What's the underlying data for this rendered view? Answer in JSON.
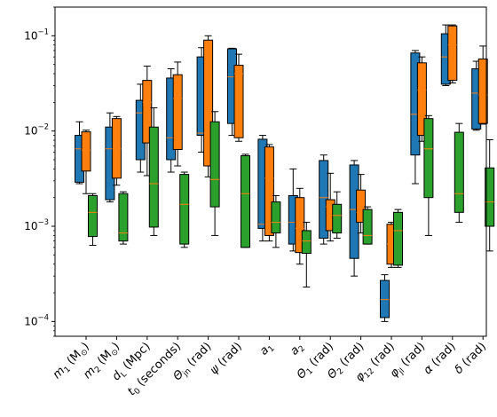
{
  "chart_data": {
    "type": "boxplot",
    "y_scale": "log",
    "ylim": [
      7e-05,
      0.2
    ],
    "y_ticks": [
      {
        "value": 0.1,
        "base": "10",
        "exp": "−1"
      },
      {
        "value": 0.01,
        "base": "10",
        "exp": "−2"
      },
      {
        "value": 0.001,
        "base": "10",
        "exp": "−3"
      },
      {
        "value": 0.0001,
        "base": "10",
        "exp": "−4"
      }
    ],
    "categories": [
      {
        "main": "m",
        "sub": "1",
        "rest": " (M",
        "sub2": "⊙",
        "end": ")"
      },
      {
        "main": "m",
        "sub": "2",
        "rest": " (M",
        "sub2": "⊙",
        "end": ")"
      },
      {
        "main": "d",
        "sub": "L",
        "rest": " (Mpc)",
        "sub2": "",
        "end": ""
      },
      {
        "main": "t",
        "sub": "0",
        "rest": " (seconds)",
        "sub2": "",
        "end": ""
      },
      {
        "main": "Θ",
        "sub": "jn",
        "rest": " (rad)",
        "sub2": "",
        "end": ""
      },
      {
        "main": "ψ",
        "sub": "",
        "rest": " (rad)",
        "sub2": "",
        "end": ""
      },
      {
        "main": "a",
        "sub": "1",
        "rest": "",
        "sub2": "",
        "end": ""
      },
      {
        "main": "a",
        "sub": "2",
        "rest": "",
        "sub2": "",
        "end": ""
      },
      {
        "main": "Θ",
        "sub": "1",
        "rest": " (rad)",
        "sub2": "",
        "end": ""
      },
      {
        "main": "Θ",
        "sub": "2",
        "rest": " (rad)",
        "sub2": "",
        "end": ""
      },
      {
        "main": "φ",
        "sub": "12",
        "rest": " (rad)",
        "sub2": "",
        "end": ""
      },
      {
        "main": "φ",
        "sub": "jl",
        "rest": " (rad)",
        "sub2": "",
        "end": ""
      },
      {
        "main": "α",
        "sub": "",
        "rest": " (rad)",
        "sub2": "",
        "end": ""
      },
      {
        "main": "δ",
        "sub": "",
        "rest": " (rad)",
        "sub2": "",
        "end": ""
      }
    ],
    "series": [
      {
        "color": "#1f77b4",
        "median_color": "#ff7f0e",
        "boxes": [
          {
            "whislo": 0.0028,
            "q1": 0.0029,
            "med": 0.0065,
            "q3": 0.009,
            "whishi": 0.0125
          },
          {
            "whislo": 0.0018,
            "q1": 0.0019,
            "med": 0.0065,
            "q3": 0.011,
            "whishi": 0.0155
          },
          {
            "whislo": 0.0037,
            "q1": 0.005,
            "med": 0.0155,
            "q3": 0.021,
            "whishi": 0.031
          },
          {
            "whislo": 0.0037,
            "q1": 0.005,
            "med": 0.0085,
            "q3": 0.036,
            "whishi": 0.045
          },
          {
            "whislo": 0.006,
            "q1": 0.009,
            "med": 0.0095,
            "q3": 0.06,
            "whishi": 0.075
          },
          {
            "whislo": 0.009,
            "q1": 0.012,
            "med": 0.037,
            "q3": 0.073,
            "whishi": 0.074
          },
          {
            "whislo": 0.0007,
            "q1": 0.00095,
            "med": 0.00105,
            "q3": 0.0082,
            "whishi": 0.009
          },
          {
            "whislo": 0.00055,
            "q1": 0.00065,
            "med": 0.0011,
            "q3": 0.0021,
            "whishi": 0.004
          },
          {
            "whislo": 0.00065,
            "q1": 0.00075,
            "med": 0.002,
            "q3": 0.0049,
            "whishi": 0.0056
          },
          {
            "whislo": 0.0003,
            "q1": 0.00046,
            "med": 0.0015,
            "q3": 0.0044,
            "whishi": 0.0049
          },
          {
            "whislo": 0.0001,
            "q1": 0.00011,
            "med": 0.00017,
            "q3": 0.00027,
            "whishi": 0.00031
          },
          {
            "whislo": 0.0028,
            "q1": 0.0056,
            "med": 0.015,
            "q3": 0.066,
            "whishi": 0.07
          },
          {
            "whislo": 0.03,
            "q1": 0.031,
            "med": 0.06,
            "q3": 0.105,
            "whishi": 0.13
          },
          {
            "whislo": 0.0102,
            "q1": 0.0105,
            "med": 0.025,
            "q3": 0.045,
            "whishi": 0.054
          }
        ]
      },
      {
        "color": "#ff7f0e",
        "median_color": "#ff7f0e",
        "boxes": [
          {
            "whislo": 0.0022,
            "q1": 0.0038,
            "med": 0.0063,
            "q3": 0.0098,
            "whishi": 0.0102
          },
          {
            "whislo": 0.0027,
            "q1": 0.0032,
            "med": 0.0065,
            "q3": 0.0135,
            "whishi": 0.0142
          },
          {
            "whislo": 0.0034,
            "q1": 0.0075,
            "med": 0.02,
            "q3": 0.034,
            "whishi": 0.048
          },
          {
            "whislo": 0.0043,
            "q1": 0.0064,
            "med": 0.022,
            "q3": 0.039,
            "whishi": 0.053
          },
          {
            "whislo": 0.0033,
            "q1": 0.0043,
            "med": 0.0095,
            "q3": 0.09,
            "whishi": 0.1
          },
          {
            "whislo": 0.0078,
            "q1": 0.0085,
            "med": 0.04,
            "q3": 0.049,
            "whishi": 0.064
          },
          {
            "whislo": 0.0007,
            "q1": 0.0008,
            "med": 0.0032,
            "q3": 0.0068,
            "whishi": 0.0072
          },
          {
            "whislo": 0.0004,
            "q1": 0.00053,
            "med": 0.00095,
            "q3": 0.002,
            "whishi": 0.0025
          },
          {
            "whislo": 0.0007,
            "q1": 0.0009,
            "med": 0.0016,
            "q3": 0.0019,
            "whishi": 0.0036
          },
          {
            "whislo": 0.00085,
            "q1": 0.0011,
            "med": 0.0014,
            "q3": 0.0024,
            "whishi": 0.0035
          },
          {
            "whislo": 0.00037,
            "q1": 0.0004,
            "med": 0.00065,
            "q3": 0.00105,
            "whishi": 0.0011
          },
          {
            "whislo": 0.0078,
            "q1": 0.009,
            "med": 0.027,
            "q3": 0.052,
            "whishi": 0.06
          },
          {
            "whislo": 0.032,
            "q1": 0.034,
            "med": 0.08,
            "q3": 0.127,
            "whishi": 0.13
          },
          {
            "whislo": 0.0118,
            "q1": 0.012,
            "med": 0.024,
            "q3": 0.057,
            "whishi": 0.078
          }
        ]
      },
      {
        "color": "#2ca02c",
        "median_color": "#ff7f0e",
        "boxes": [
          {
            "whislo": 0.00063,
            "q1": 0.00078,
            "med": 0.0014,
            "q3": 0.0021,
            "whishi": 0.0022
          },
          {
            "whislo": 0.00065,
            "q1": 0.0007,
            "med": 0.00085,
            "q3": 0.0022,
            "whishi": 0.0023
          },
          {
            "whislo": 0.0008,
            "q1": 0.00098,
            "med": 0.0028,
            "q3": 0.011,
            "whishi": 0.0175
          },
          {
            "whislo": 0.0006,
            "q1": 0.00065,
            "med": 0.0017,
            "q3": 0.0035,
            "whishi": 0.0037
          },
          {
            "whislo": 0.0008,
            "q1": 0.0016,
            "med": 0.0031,
            "q3": 0.0125,
            "whishi": 0.016
          },
          {
            "whislo": 0.0006,
            "q1": 0.0006,
            "med": 0.0022,
            "q3": 0.0055,
            "whishi": 0.0057
          },
          {
            "whislo": 0.0006,
            "q1": 0.00085,
            "med": 0.0011,
            "q3": 0.0018,
            "whishi": 0.0021
          },
          {
            "whislo": 0.00023,
            "q1": 0.00052,
            "med": 0.0007,
            "q3": 0.0009,
            "whishi": 0.0011
          },
          {
            "whislo": 0.00075,
            "q1": 0.00085,
            "med": 0.0013,
            "q3": 0.0017,
            "whishi": 0.0023
          },
          {
            "whislo": 0.00065,
            "q1": 0.00065,
            "med": 0.0008,
            "q3": 0.0015,
            "whishi": 0.0016
          },
          {
            "whislo": 0.00037,
            "q1": 0.00039,
            "med": 0.0009,
            "q3": 0.0014,
            "whishi": 0.0015
          },
          {
            "whislo": 0.0008,
            "q1": 0.002,
            "med": 0.0065,
            "q3": 0.0135,
            "whishi": 0.0145
          },
          {
            "whislo": 0.0011,
            "q1": 0.0014,
            "med": 0.0022,
            "q3": 0.0097,
            "whishi": 0.012
          },
          {
            "whislo": 0.00055,
            "q1": 0.001,
            "med": 0.0018,
            "q3": 0.0041,
            "whishi": 0.0081
          }
        ]
      }
    ]
  }
}
